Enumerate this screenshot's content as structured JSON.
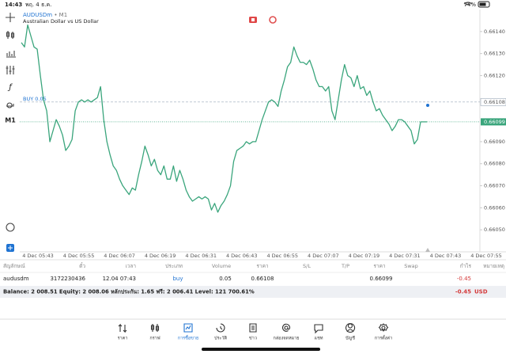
{
  "status_bar": {
    "time": "14:43",
    "date": "พฤ. 4 ธ.ค.",
    "battery": "74%"
  },
  "toolbar": {
    "timeframe": "M1"
  },
  "chart": {
    "type": "line",
    "symbol": "AUDUSDm",
    "period": "• M1",
    "description": "Australian Dollar vs US Dollar",
    "color": "#3aa57c",
    "values": [
      0.66135,
      0.66133,
      0.66143,
      0.66138,
      0.66133,
      0.66132,
      0.6612,
      0.66109,
      0.66104,
      0.6609,
      0.66095,
      0.661,
      0.66097,
      0.66093,
      0.66086,
      0.66088,
      0.66091,
      0.66104,
      0.66108,
      0.66109,
      0.66108,
      0.66109,
      0.66108,
      0.66109,
      0.6611,
      0.66115,
      0.661,
      0.6609,
      0.66084,
      0.66079,
      0.66077,
      0.66073,
      0.6607,
      0.66068,
      0.66066,
      0.66069,
      0.66068,
      0.66075,
      0.66081,
      0.66088,
      0.66084,
      0.66079,
      0.66082,
      0.66077,
      0.66075,
      0.66079,
      0.66073,
      0.66073,
      0.66079,
      0.66072,
      0.66077,
      0.66073,
      0.66068,
      0.66065,
      0.66063,
      0.66064,
      0.66065,
      0.66064,
      0.66065,
      0.66064,
      0.66059,
      0.66062,
      0.66058,
      0.66061,
      0.66063,
      0.66066,
      0.6607,
      0.66081,
      0.66086,
      0.66087,
      0.66088,
      0.6609,
      0.66089,
      0.6609,
      0.6609,
      0.66095,
      0.661,
      0.66104,
      0.66108,
      0.66109,
      0.66108,
      0.66106,
      0.66113,
      0.66118,
      0.66124,
      0.66126,
      0.66133,
      0.66129,
      0.66126,
      0.66126,
      0.66125,
      0.66127,
      0.66123,
      0.66118,
      0.66115,
      0.66115,
      0.66113,
      0.66115,
      0.66104,
      0.661,
      0.66109,
      0.66118,
      0.66125,
      0.6612,
      0.66119,
      0.66115,
      0.6612,
      0.66114,
      0.66115,
      0.66111,
      0.66113,
      0.66108,
      0.66104,
      0.66105,
      0.66102,
      0.661,
      0.66098,
      0.66095,
      0.66097,
      0.661,
      0.661,
      0.66099,
      0.66097,
      0.66095,
      0.66089,
      0.66091,
      0.66099,
      0.66099,
      0.66099
    ],
    "ylim": [
      0.6604,
      0.6615
    ],
    "yticks": [
      {
        "value": 0.6605,
        "label": "0.66050"
      },
      {
        "value": 0.6606,
        "label": "0.66060"
      },
      {
        "value": 0.6607,
        "label": "0.66070"
      },
      {
        "value": 0.6608,
        "label": "0.66080"
      },
      {
        "value": 0.6609,
        "label": "0.66090"
      },
      {
        "value": 0.6612,
        "label": "0.66120"
      },
      {
        "value": 0.6613,
        "label": "0.66130"
      },
      {
        "value": 0.6614,
        "label": "0.66140"
      }
    ],
    "x_labels": [
      "4 Dec 05:43",
      "4 Dec 05:55",
      "4 Dec 06:07",
      "4 Dec 06:19",
      "4 Dec 06:31",
      "4 Dec 06:43",
      "4 Dec 06:55",
      "4 Dec 07:07",
      "4 Dec 07:19",
      "4 Dec 07:31",
      "4 Dec 07:43",
      "4 Dec 07:55"
    ],
    "buy_label": "BUY 0.05",
    "buy_price": {
      "value": 0.66108,
      "label": "0.66108"
    },
    "bid_price": {
      "value": 0.66099,
      "label": "0.66099"
    }
  },
  "table": {
    "columns": [
      "สัญลักษณ์",
      "ตั๋ว",
      "เวลา",
      "ประเภท",
      "Volume",
      "ราคา",
      "S/L",
      "T/P",
      "ราคา",
      "Swap",
      "กำไร",
      "หมายเหตุ"
    ],
    "row": {
      "symbol": "audusdm",
      "ticket": "3172230436",
      "time": "12.04 07:43",
      "type": "buy",
      "volume": "0.05",
      "open_price": "0.66108",
      "price": "0.66099",
      "profit": "-0.45"
    }
  },
  "summary": {
    "text": "Balance: 2 008.51 Equity: 2 008.06 หลักประกัน: 1.65 ฟรี: 2 006.41 Level: 121 700.61%",
    "profit": "-0.45",
    "currency": "USD"
  },
  "tabs": [
    "ราคา",
    "กราฟ",
    "การซื้อขาย",
    "ประวัติ",
    "ข่าว",
    "กล่องจดหมาย",
    "แชท",
    "บัญชี",
    "การตั้งค่า"
  ]
}
